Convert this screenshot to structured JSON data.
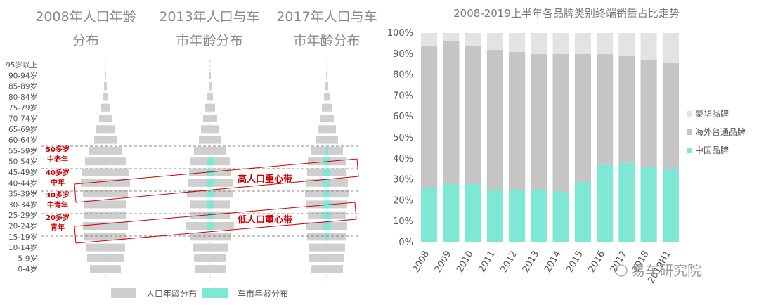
{
  "pyramid": {
    "titles": [
      {
        "line1": "2008年人口年龄",
        "line2": "分布"
      },
      {
        "line1": "2013年人口与车",
        "line2": "市年龄分布"
      },
      {
        "line1": "2017年人口与车",
        "line2": "市年龄分布"
      }
    ],
    "age_labels": [
      "95岁以上",
      "90-94岁",
      "85-89岁",
      "80-84岁",
      "75-79岁",
      "70-74岁",
      "65-69岁",
      "60-64岁",
      "55-59岁",
      "50-54岁",
      "45-49岁",
      "40-44岁",
      "35-39岁",
      "30-34岁",
      "25-29岁",
      "20-24岁",
      "15-19岁",
      "10-14岁",
      "5-9岁",
      "0-4岁"
    ],
    "annotations": [
      {
        "l1": "50多岁",
        "l2": "中老年"
      },
      {
        "l1": "40多岁",
        "l2": "中年"
      },
      {
        "l1": "30多岁",
        "l2": "中青年"
      },
      {
        "l1": "20多岁",
        "l2": "青年"
      }
    ],
    "bands": [
      "高人口重心带",
      "低人口重心带"
    ],
    "legend": [
      "人口年龄分布",
      "车市年龄分布"
    ],
    "colors": {
      "population": "#cfcfcf",
      "car_market": "#7ee8d4",
      "annotation": "#cc0000"
    }
  },
  "chart_data": {
    "type": "bar",
    "stacked": true,
    "title": "2008-2019上半年各品牌类别终端销量占比走势",
    "categories": [
      "2008",
      "2009",
      "2010",
      "2011",
      "2012",
      "2013",
      "2014",
      "2015",
      "2016",
      "2017",
      "2018",
      "2019H1"
    ],
    "ylim": [
      0,
      100
    ],
    "y_ticks": [
      "0%",
      "10%",
      "20%",
      "30%",
      "40%",
      "50%",
      "60%",
      "70%",
      "80%",
      "90%",
      "100%"
    ],
    "legend_position": "right",
    "series": [
      {
        "name": "中国品牌",
        "color": "#7ee8d4",
        "values": [
          26,
          28,
          28,
          25,
          25,
          25,
          24,
          29,
          37,
          38,
          36,
          35
        ]
      },
      {
        "name": "海外普通品牌",
        "color": "#c5c5c5",
        "values": [
          68,
          68,
          66,
          67,
          66,
          65,
          66,
          61,
          53,
          51,
          51,
          51
        ]
      },
      {
        "name": "豪华品牌",
        "color": "#e3e3e3",
        "values": [
          6,
          4,
          6,
          8,
          9,
          10,
          10,
          10,
          10,
          11,
          13,
          14
        ]
      }
    ]
  },
  "watermark": {
    "brand": "易车研究院"
  }
}
